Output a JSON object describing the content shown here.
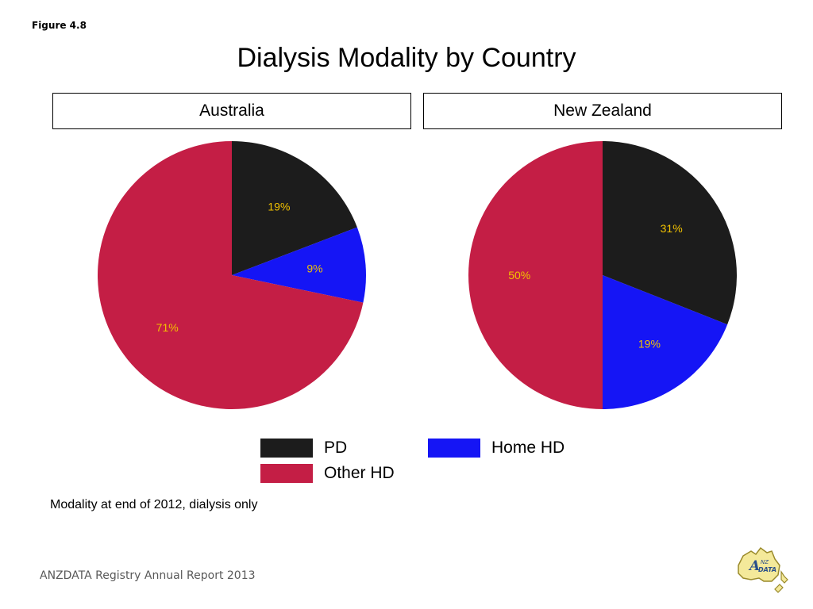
{
  "figure_label": "Figure 4.8",
  "source_text": "ANZDATA Registry Annual Report 2013",
  "footnote": "Modality at end of 2012, dialysis only",
  "logo_text": "ANZDATA",
  "colors": {
    "PD": "#1c1c1c",
    "Home HD": "#1515f5",
    "Other HD": "#c41e45",
    "label": "#f2c200"
  },
  "chart_data": {
    "type": "pie",
    "title": "Dialysis Modality by Country",
    "legend": [
      "PD",
      "Home HD",
      "Other HD"
    ],
    "legend_position": "bottom",
    "panels": [
      {
        "name": "Australia",
        "slices": [
          {
            "label": "PD",
            "value": 19,
            "text": "19%"
          },
          {
            "label": "Home HD",
            "value": 9,
            "text": "9%"
          },
          {
            "label": "Other HD",
            "value": 71,
            "text": "71%"
          }
        ]
      },
      {
        "name": "New Zealand",
        "slices": [
          {
            "label": "PD",
            "value": 31,
            "text": "31%"
          },
          {
            "label": "Home HD",
            "value": 19,
            "text": "19%"
          },
          {
            "label": "Other HD",
            "value": 50,
            "text": "50%"
          }
        ]
      }
    ]
  }
}
